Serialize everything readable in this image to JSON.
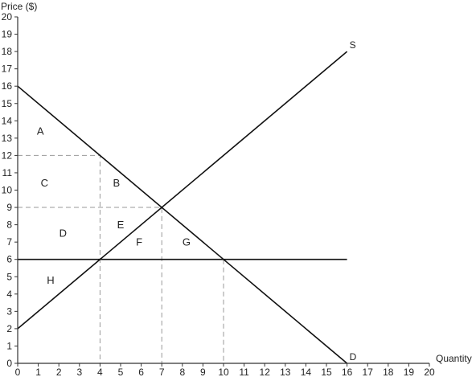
{
  "chart_data": {
    "type": "line",
    "xlabel": "Quantity",
    "ylabel": "Price ($)",
    "xlim": [
      0,
      20
    ],
    "ylim": [
      0,
      20
    ],
    "x_ticks": [
      0,
      1,
      2,
      3,
      4,
      5,
      6,
      7,
      8,
      9,
      10,
      11,
      12,
      13,
      14,
      15,
      16,
      17,
      18,
      19,
      20
    ],
    "y_ticks": [
      0,
      1,
      2,
      3,
      4,
      5,
      6,
      7,
      8,
      9,
      10,
      11,
      12,
      13,
      14,
      15,
      16,
      17,
      18,
      19,
      20
    ],
    "grid": false,
    "series": [
      {
        "name": "S",
        "points": [
          [
            0,
            2
          ],
          [
            16,
            18
          ]
        ]
      },
      {
        "name": "D",
        "points": [
          [
            0,
            16
          ],
          [
            16,
            0
          ]
        ]
      },
      {
        "points": [
          [
            0,
            6
          ],
          [
            16,
            6
          ]
        ]
      }
    ],
    "guides": [
      {
        "points": [
          [
            0,
            12
          ],
          [
            4,
            12
          ],
          [
            4,
            0
          ]
        ]
      },
      {
        "points": [
          [
            0,
            9
          ],
          [
            7,
            9
          ],
          [
            7,
            0
          ]
        ]
      },
      {
        "points": [
          [
            10,
            6
          ],
          [
            10,
            0
          ]
        ]
      }
    ],
    "regions": [
      {
        "label": "A",
        "x": 1.1,
        "y": 13.2
      },
      {
        "label": "B",
        "x": 4.8,
        "y": 10.2
      },
      {
        "label": "C",
        "x": 1.3,
        "y": 10.2
      },
      {
        "label": "D",
        "x": 2.2,
        "y": 7.3
      },
      {
        "label": "E",
        "x": 5.0,
        "y": 7.8
      },
      {
        "label": "F",
        "x": 5.9,
        "y": 6.8
      },
      {
        "label": "G",
        "x": 8.2,
        "y": 6.8
      },
      {
        "label": "H",
        "x": 1.6,
        "y": 4.6
      }
    ]
  }
}
